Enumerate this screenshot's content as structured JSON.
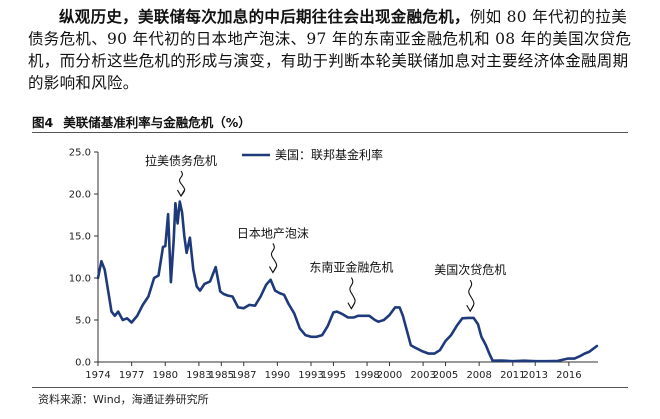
{
  "intro": {
    "bold": "纵观历史，美联储每次加息的中后期往往会出现金融危机，",
    "text": "例如 80 年代初的拉美债务危机、90 年代初的日本地产泡沫、97 年的东南亚金融危机和 08 年的美国次贷危机，而分析这些危机的形成与演变，有助于判断本轮美联储加息对主要经济体金融周期的影响和风险。"
  },
  "figure": {
    "label": "图4",
    "title": "美联储基准利率与金融危机（%）",
    "source": "资料来源：Wind，海通证券研究所"
  },
  "chart_data": {
    "type": "line",
    "title": "",
    "xlabel": "",
    "ylabel": "",
    "xlim": [
      1974,
      2018.6
    ],
    "ylim": [
      0,
      25
    ],
    "yticks": [
      "0.0",
      "5.0",
      "10.0",
      "15.0",
      "20.0",
      "25.0"
    ],
    "ytick_values": [
      0,
      5,
      10,
      15,
      20,
      25
    ],
    "xticks": [
      "1974",
      "1977",
      "1980",
      "1983",
      "1985",
      "1987",
      "1990",
      "1993",
      "1995",
      "1998",
      "2000",
      "2003",
      "2005",
      "2008",
      "2011",
      "2013",
      "2016"
    ],
    "xtick_values": [
      1974,
      1977,
      1980,
      1983,
      1985,
      1987,
      1990,
      1993,
      1995,
      1998,
      2000,
      2003,
      2005,
      2008,
      2011,
      2013,
      2016
    ],
    "legend_position": "top-center",
    "grid": false,
    "series": [
      {
        "name": "美国：联邦基金利率",
        "color": "#1f3a7a",
        "x": [
          1974.0,
          1974.3,
          1974.6,
          1974.9,
          1975.2,
          1975.5,
          1975.8,
          1976.2,
          1976.6,
          1977.0,
          1977.5,
          1978.0,
          1978.5,
          1979.0,
          1979.4,
          1979.8,
          1980.0,
          1980.25,
          1980.5,
          1980.75,
          1980.9,
          1981.1,
          1981.3,
          1981.5,
          1981.7,
          1981.9,
          1982.2,
          1982.5,
          1982.8,
          1983.1,
          1983.5,
          1984.0,
          1984.5,
          1984.9,
          1985.2,
          1985.6,
          1986.0,
          1986.5,
          1987.0,
          1987.5,
          1988.0,
          1988.5,
          1989.0,
          1989.4,
          1989.8,
          1990.2,
          1990.6,
          1991.0,
          1991.5,
          1992.0,
          1992.5,
          1993.0,
          1993.5,
          1994.0,
          1994.5,
          1995.0,
          1995.3,
          1995.8,
          1996.3,
          1996.8,
          1997.2,
          1997.7,
          1998.2,
          1998.7,
          1999.0,
          1999.5,
          2000.0,
          2000.5,
          2000.9,
          2001.2,
          2001.6,
          2001.9,
          2002.3,
          2002.9,
          2003.5,
          2004.0,
          2004.5,
          2005.0,
          2005.5,
          2006.0,
          2006.5,
          2007.0,
          2007.5,
          2007.9,
          2008.2,
          2008.6,
          2008.9,
          2009.2,
          2010.0,
          2011.0,
          2012.0,
          2013.0,
          2014.0,
          2015.0,
          2015.9,
          2016.5,
          2017.0,
          2017.4,
          2017.8,
          2018.2,
          2018.5
        ],
        "values": [
          10.0,
          12.0,
          11.0,
          8.5,
          6.0,
          5.5,
          6.0,
          5.0,
          5.2,
          4.7,
          5.5,
          6.8,
          7.8,
          10.0,
          10.3,
          13.7,
          13.8,
          17.6,
          9.5,
          14.5,
          18.9,
          16.5,
          19.1,
          17.8,
          15.0,
          13.0,
          14.8,
          11.0,
          9.0,
          8.5,
          9.3,
          9.6,
          11.3,
          8.4,
          8.1,
          7.9,
          7.8,
          6.5,
          6.4,
          6.8,
          6.7,
          7.8,
          9.2,
          9.8,
          8.5,
          8.2,
          8.0,
          6.9,
          5.8,
          4.0,
          3.2,
          3.0,
          3.0,
          3.2,
          4.3,
          5.9,
          6.0,
          5.7,
          5.3,
          5.3,
          5.5,
          5.5,
          5.5,
          5.0,
          4.8,
          5.0,
          5.6,
          6.5,
          6.5,
          5.5,
          3.5,
          2.0,
          1.7,
          1.3,
          1.0,
          1.0,
          1.4,
          2.5,
          3.2,
          4.3,
          5.2,
          5.25,
          5.25,
          4.5,
          3.0,
          2.0,
          1.0,
          0.15,
          0.18,
          0.1,
          0.15,
          0.1,
          0.1,
          0.13,
          0.4,
          0.4,
          0.7,
          1.0,
          1.2,
          1.6,
          1.9
        ]
      }
    ],
    "annotations": [
      {
        "text": "拉美债务危机",
        "x": 1981.4,
        "y": 19.4
      },
      {
        "text": "日本地产泡沫",
        "x": 1989.6,
        "y": 10.3
      },
      {
        "text": "东南亚金融危机",
        "x": 1996.6,
        "y": 6.0
      },
      {
        "text": "美国次贷危机",
        "x": 2007.2,
        "y": 5.7
      }
    ]
  }
}
